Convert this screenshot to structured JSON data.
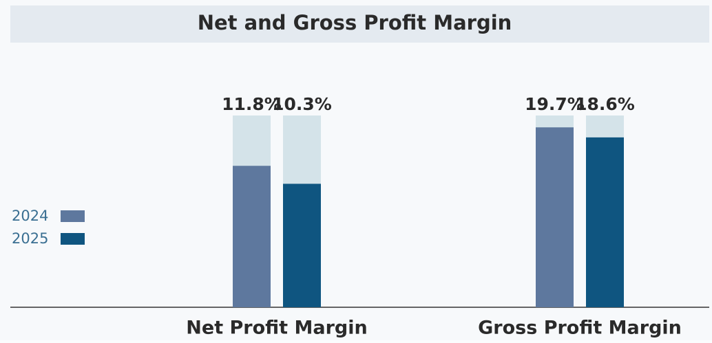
{
  "chart_data": [
    {
      "type": "bar",
      "title": "Net and Gross Profit Margin",
      "categories": [
        "Net Profit Margin"
      ],
      "series": [
        {
          "name": "2024",
          "color": "#5e789e",
          "values": [
            11.8
          ],
          "value_labels": [
            "11.8%"
          ]
        },
        {
          "name": "2025",
          "color": "#0f5580",
          "values": [
            10.3
          ],
          "value_labels": [
            "10.3%"
          ]
        }
      ],
      "ylim": [
        0,
        16
      ]
    },
    {
      "type": "bar",
      "categories": [
        "Gross Profit Margin"
      ],
      "series": [
        {
          "color": "#5e789e",
          "values": [
            19.7
          ],
          "value_labels": [
            "19.7%"
          ]
        },
        {
          "color": "#0f5580",
          "values": [
            18.6
          ],
          "value_labels": [
            "18.6%"
          ]
        }
      ],
      "ylim": [
        0,
        21
      ]
    }
  ]
}
